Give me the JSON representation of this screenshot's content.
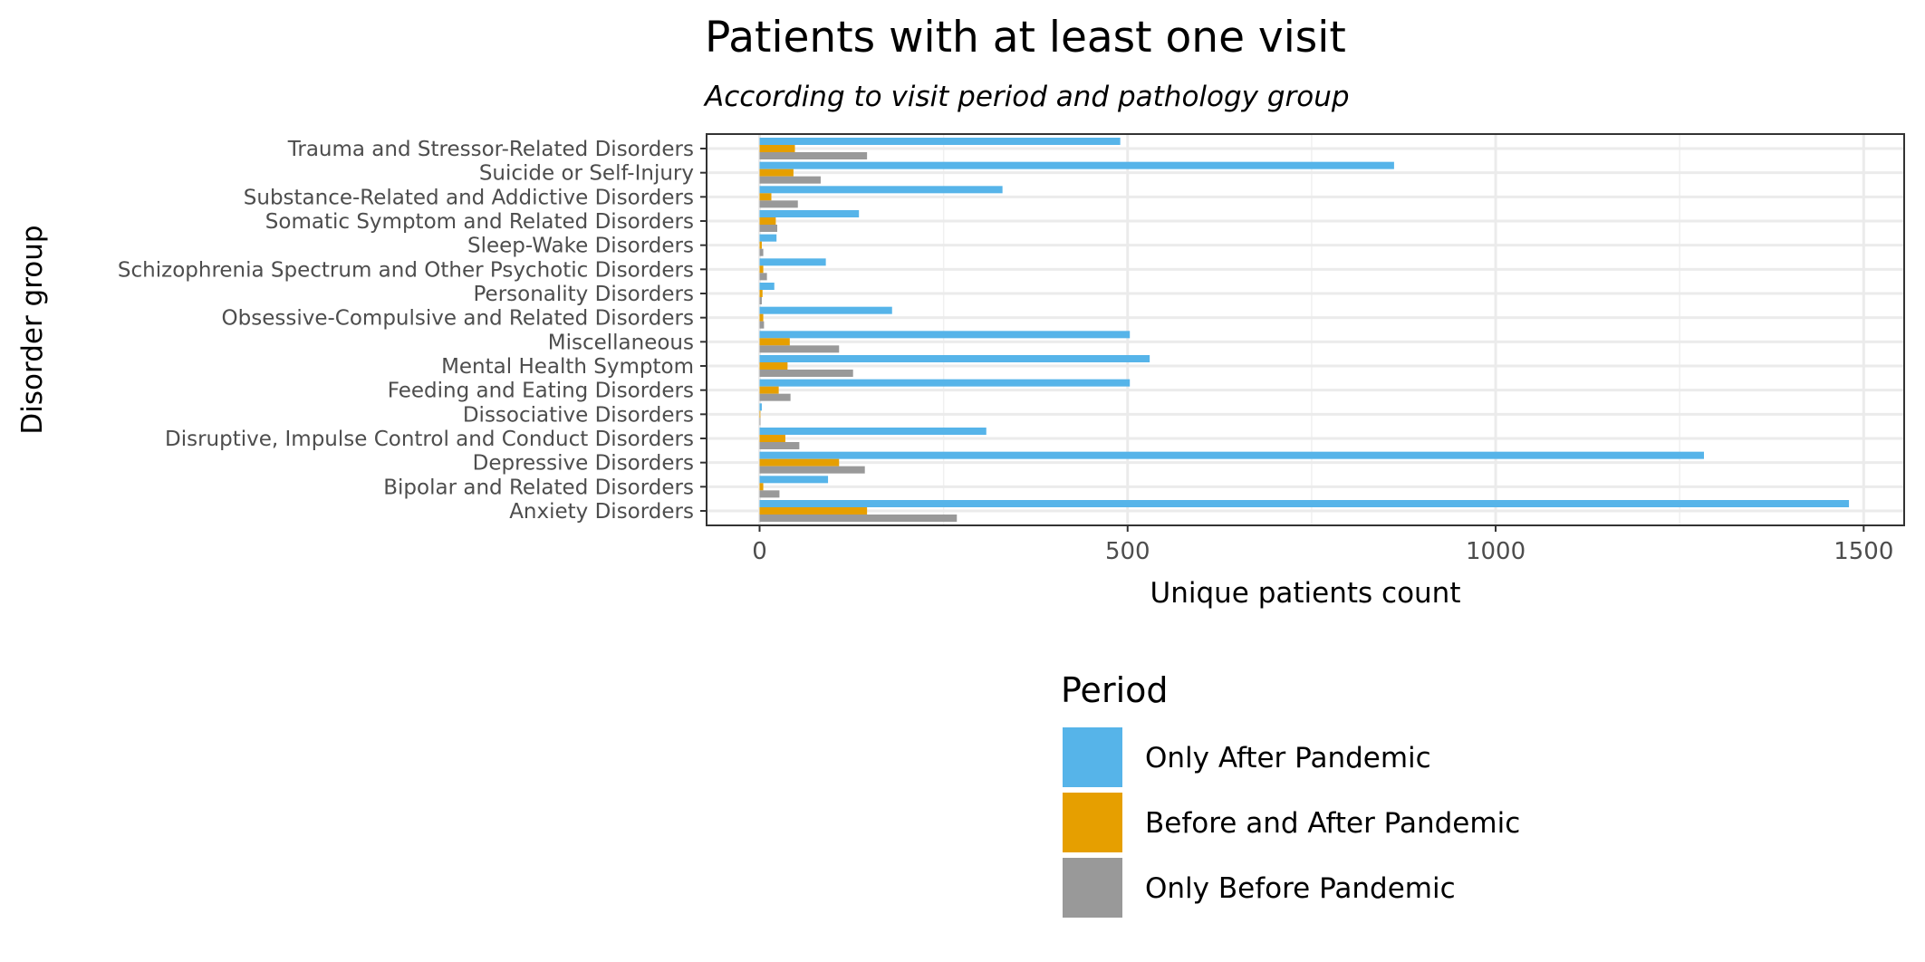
{
  "chart_data": {
    "type": "bar",
    "orientation": "horizontal",
    "title": "Patients with at least one visit",
    "subtitle": "According to visit period and pathology group",
    "xlabel": "Unique patients count",
    "ylabel": "Disorder group",
    "xlim": [
      -72,
      1555
    ],
    "xticks": [
      0,
      500,
      1000,
      1500
    ],
    "grid": true,
    "legend": {
      "title": "Period",
      "position": "bottom"
    },
    "categories": [
      "Trauma and Stressor-Related Disorders",
      "Suicide or Self-Injury",
      "Substance-Related and Addictive Disorders",
      "Somatic Symptom and Related Disorders",
      "Sleep-Wake Disorders",
      "Schizophrenia Spectrum and Other Psychotic Disorders",
      "Personality Disorders",
      "Obsessive-Compulsive and Related Disorders",
      "Miscellaneous",
      "Mental Health Symptom",
      "Feeding and Eating Disorders",
      "Dissociative Disorders",
      "Disruptive, Impulse Control and Conduct Disorders",
      "Depressive Disorders",
      "Bipolar and Related Disorders",
      "Anxiety Disorders"
    ],
    "series": [
      {
        "name": "Only After Pandemic",
        "color": "#56B4E9",
        "values": [
          490,
          862,
          330,
          135,
          23,
          90,
          20,
          180,
          503,
          530,
          503,
          3,
          308,
          1283,
          93,
          1480
        ]
      },
      {
        "name": "Before and After Pandemic",
        "color": "#E69F00",
        "values": [
          48,
          46,
          16,
          22,
          3,
          5,
          4,
          5,
          41,
          38,
          26,
          1,
          35,
          108,
          5,
          146
        ]
      },
      {
        "name": "Only Before Pandemic",
        "color": "#999999",
        "values": [
          146,
          83,
          52,
          24,
          5,
          10,
          3,
          6,
          108,
          127,
          42,
          1,
          54,
          143,
          27,
          268
        ]
      }
    ]
  }
}
